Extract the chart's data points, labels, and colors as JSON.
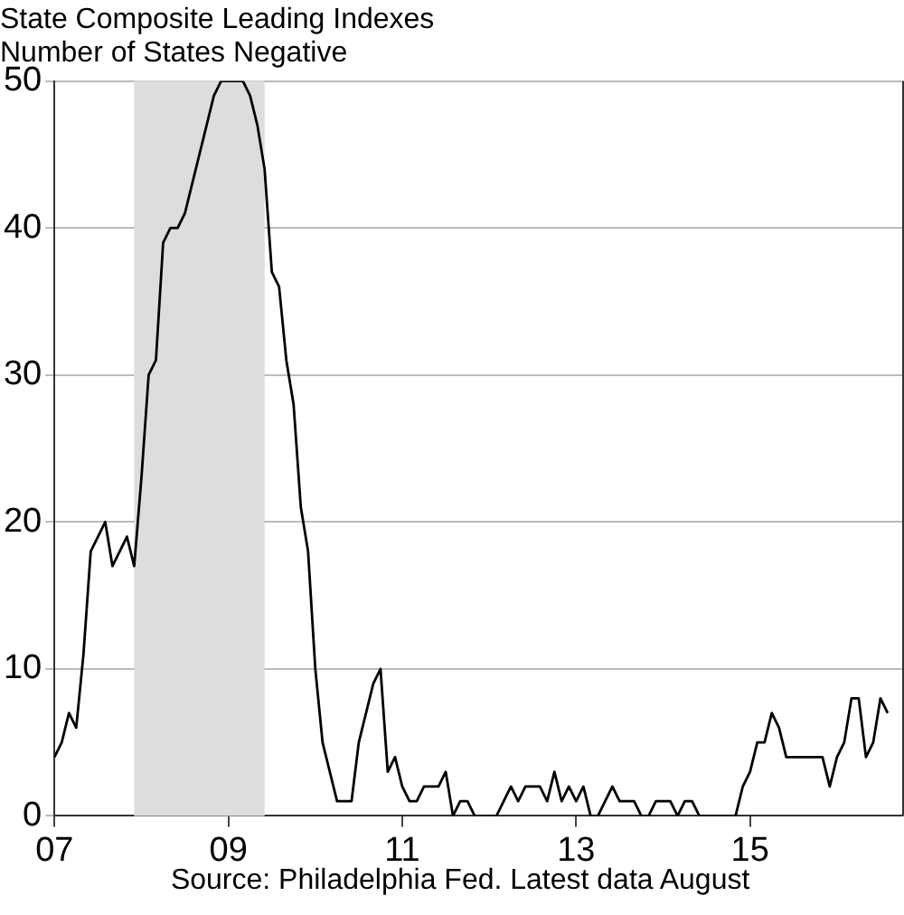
{
  "chart_data": {
    "type": "line",
    "title": "State Composite Leading Indexes\nNumber of States Negative",
    "x": [
      "2007-01",
      "2007-02",
      "2007-03",
      "2007-04",
      "2007-05",
      "2007-06",
      "2007-07",
      "2007-08",
      "2007-09",
      "2007-10",
      "2007-11",
      "2007-12",
      "2008-01",
      "2008-02",
      "2008-03",
      "2008-04",
      "2008-05",
      "2008-06",
      "2008-07",
      "2008-08",
      "2008-09",
      "2008-10",
      "2008-11",
      "2008-12",
      "2009-01",
      "2009-02",
      "2009-03",
      "2009-04",
      "2009-05",
      "2009-06",
      "2009-07",
      "2009-08",
      "2009-09",
      "2009-10",
      "2009-11",
      "2009-12",
      "2010-01",
      "2010-02",
      "2010-03",
      "2010-04",
      "2010-05",
      "2010-06",
      "2010-07",
      "2010-08",
      "2010-09",
      "2010-10",
      "2010-11",
      "2010-12",
      "2011-01",
      "2011-02",
      "2011-03",
      "2011-04",
      "2011-05",
      "2011-06",
      "2011-07",
      "2011-08",
      "2011-09",
      "2011-10",
      "2011-11",
      "2011-12",
      "2012-01",
      "2012-02",
      "2012-03",
      "2012-04",
      "2012-05",
      "2012-06",
      "2012-07",
      "2012-08",
      "2012-09",
      "2012-10",
      "2012-11",
      "2012-12",
      "2013-01",
      "2013-02",
      "2013-03",
      "2013-04",
      "2013-05",
      "2013-06",
      "2013-07",
      "2013-08",
      "2013-09",
      "2013-10",
      "2013-11",
      "2013-12",
      "2014-01",
      "2014-02",
      "2014-03",
      "2014-04",
      "2014-05",
      "2014-06",
      "2014-07",
      "2014-08",
      "2014-09",
      "2014-10",
      "2014-11",
      "2014-12",
      "2015-01",
      "2015-02",
      "2015-03",
      "2015-04",
      "2015-05",
      "2015-06",
      "2015-07",
      "2015-08",
      "2015-09",
      "2015-10",
      "2015-11",
      "2015-12",
      "2016-01",
      "2016-02",
      "2016-03",
      "2016-04",
      "2016-05",
      "2016-06",
      "2016-07",
      "2016-08"
    ],
    "series": [
      {
        "color": "#000000",
        "values": [
          4,
          5,
          7,
          6,
          11,
          18,
          19,
          20,
          17,
          18,
          19,
          17,
          23,
          30,
          31,
          39,
          40,
          40,
          41,
          43,
          45,
          47,
          49,
          50,
          50,
          50,
          50,
          49,
          47,
          44,
          37,
          36,
          31,
          28,
          21,
          18,
          10,
          5,
          3,
          1,
          1,
          1,
          5,
          7,
          9,
          10,
          3,
          4,
          2,
          1,
          1,
          2,
          2,
          2,
          3,
          0,
          1,
          1,
          0,
          0,
          0,
          0,
          1,
          2,
          1,
          2,
          2,
          2,
          1,
          3,
          1,
          2,
          1,
          2,
          0,
          0,
          1,
          2,
          1,
          1,
          1,
          0,
          0,
          1,
          1,
          1,
          0,
          1,
          1,
          0,
          0,
          0,
          0,
          0,
          0,
          2,
          3,
          5,
          5,
          7,
          6,
          4,
          4,
          4,
          4,
          4,
          4,
          2,
          4,
          5,
          8,
          8,
          4,
          5,
          8,
          7
        ]
      }
    ],
    "xlim": [
      "2007-01",
      "2016-10"
    ],
    "xticks": [
      {
        "value": "2007-01",
        "label": "07"
      },
      {
        "value": "2009-01",
        "label": "09"
      },
      {
        "value": "2011-01",
        "label": "11"
      },
      {
        "value": "2013-01",
        "label": "13"
      },
      {
        "value": "2015-01",
        "label": "15"
      }
    ],
    "ylim": [
      0,
      50
    ],
    "yticks": [
      0,
      10,
      20,
      30,
      40,
      50
    ],
    "grid": "y",
    "bands": [
      {
        "axis": "x",
        "from": "2007-12",
        "to": "2009-06",
        "color": "#dddddd"
      }
    ],
    "annotations": [
      "Source: Philadelphia Fed. Latest data August"
    ]
  }
}
